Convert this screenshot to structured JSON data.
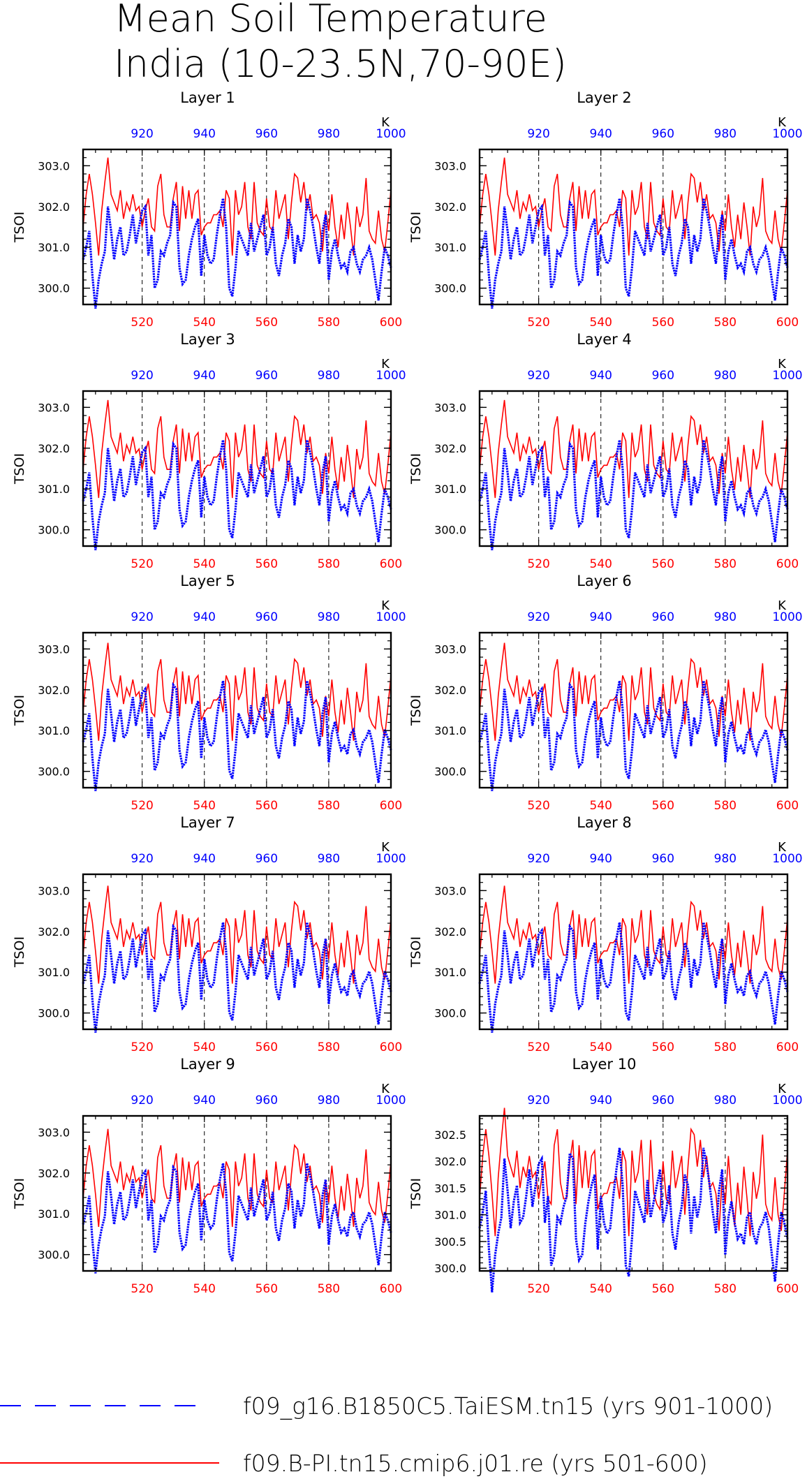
{
  "title_line1": "Mean Soil Temperature",
  "title_line2": "India (10-23.5N,70-90E)",
  "colors": {
    "series_a": "#0000ff",
    "series_b": "#ff0000",
    "axis": "#000000"
  },
  "chart_data": {
    "type": "line",
    "ylabel": "TSOI",
    "top_axis_unit": "K",
    "x_top_ticks": [
      920,
      940,
      960,
      980,
      1000
    ],
    "x_bottom_ticks": [
      520,
      540,
      560,
      580,
      600
    ],
    "x_bottom_range": [
      501,
      600
    ],
    "x_top_range": [
      901,
      1000
    ],
    "ylim": [
      299.6,
      303.4
    ],
    "yticks": [
      300.0,
      301.0,
      302.0,
      303.0
    ],
    "ylim_layer10": [
      299.95,
      302.85
    ],
    "yticks_layer10": [
      300.0,
      300.5,
      301.0,
      301.5,
      302.0,
      302.5
    ],
    "grid": "dashed vertical lines at 520, 540, 560, 580",
    "legend_placement": "bottom",
    "legend": [
      {
        "label": "f09_g16.B1850C5.TaiESM.tn15 (yrs 901-1000)",
        "style": "dashed",
        "color": "#0000ff"
      },
      {
        "label": "f09.B-PI.tn15.cmip6.j01.re (yrs 501-600)",
        "style": "solid",
        "color": "#ff0000"
      }
    ],
    "panels": [
      {
        "title": "Layer 1",
        "red_offset": 0.0,
        "blue_offset": 0.0
      },
      {
        "title": "Layer 2",
        "red_offset": 0.0,
        "blue_offset": 0.0
      },
      {
        "title": "Layer 3",
        "red_offset": -0.02,
        "blue_offset": 0.0
      },
      {
        "title": "Layer 4",
        "red_offset": -0.02,
        "blue_offset": 0.0
      },
      {
        "title": "Layer 5",
        "red_offset": -0.05,
        "blue_offset": 0.02
      },
      {
        "title": "Layer 6",
        "red_offset": -0.05,
        "blue_offset": 0.02
      },
      {
        "title": "Layer 7",
        "red_offset": -0.08,
        "blue_offset": 0.02
      },
      {
        "title": "Layer 8",
        "red_offset": -0.08,
        "blue_offset": 0.02
      },
      {
        "title": "Layer 9",
        "red_offset": -0.12,
        "blue_offset": 0.04
      },
      {
        "title": "Layer 10",
        "red_offset": -0.2,
        "blue_offset": 0.05
      }
    ],
    "series_red": [
      301.5,
      302.3,
      302.8,
      302.3,
      301.6,
      300.8,
      301.9,
      302.6,
      303.2,
      302.3,
      302.1,
      301.9,
      302.4,
      301.7,
      302.1,
      301.9,
      302.3,
      301.9,
      302.0,
      301.5,
      301.9,
      302.2,
      301.5,
      301.4,
      302.5,
      302.8,
      301.8,
      301.5,
      301.5,
      302.2,
      302.6,
      301.4,
      302.5,
      301.7,
      302.4,
      301.7,
      302.3,
      302.4,
      301.3,
      301.5,
      301.6,
      301.6,
      301.8,
      301.8,
      301.9,
      301.5,
      302.4,
      302.2,
      300.8,
      302.4,
      301.8,
      302.0,
      302.6,
      301.5,
      301.2,
      302.6,
      301.6,
      301.4,
      301.3,
      302.2,
      301.5,
      301.4,
      302.4,
      301.7,
      302.0,
      302.3,
      301.2,
      302.1,
      302.8,
      302.7,
      302.1,
      302.6,
      301.9,
      302.3,
      301.7,
      301.8,
      301.6,
      300.9,
      301.9,
      301.4,
      302.3,
      301.5,
      301.0,
      301.8,
      301.2,
      302.1,
      301.5,
      300.8,
      302.0,
      301.5,
      301.8,
      302.7,
      301.4,
      301.2,
      301.1,
      301.9,
      301.2,
      300.9,
      301.6,
      302.4
    ],
    "series_blue": [
      300.7,
      301.0,
      301.4,
      300.3,
      299.5,
      300.2,
      300.6,
      300.9,
      302.0,
      301.4,
      300.7,
      301.2,
      301.5,
      300.8,
      300.9,
      301.3,
      301.8,
      301.1,
      301.5,
      301.9,
      302.0,
      300.8,
      301.3,
      300.0,
      300.2,
      300.9,
      300.8,
      301.1,
      301.3,
      302.1,
      302.0,
      300.5,
      300.1,
      300.2,
      300.8,
      301.2,
      301.5,
      301.7,
      300.3,
      301.3,
      300.8,
      300.6,
      300.7,
      301.3,
      301.8,
      302.2,
      301.5,
      300.0,
      299.8,
      300.5,
      301.4,
      301.2,
      301.0,
      300.8,
      301.6,
      300.9,
      301.2,
      301.5,
      301.8,
      300.8,
      301.0,
      301.5,
      300.6,
      300.3,
      300.8,
      301.1,
      301.7,
      301.5,
      300.6,
      301.3,
      300.9,
      301.2,
      302.2,
      301.9,
      301.5,
      301.0,
      300.6,
      301.4,
      301.8,
      300.2,
      300.9,
      301.2,
      300.8,
      300.5,
      300.6,
      300.4,
      300.9,
      301.0,
      300.6,
      300.4,
      300.7,
      300.8,
      301.0,
      300.7,
      300.2,
      299.7,
      300.4,
      301.0,
      300.8,
      300.5
    ]
  }
}
